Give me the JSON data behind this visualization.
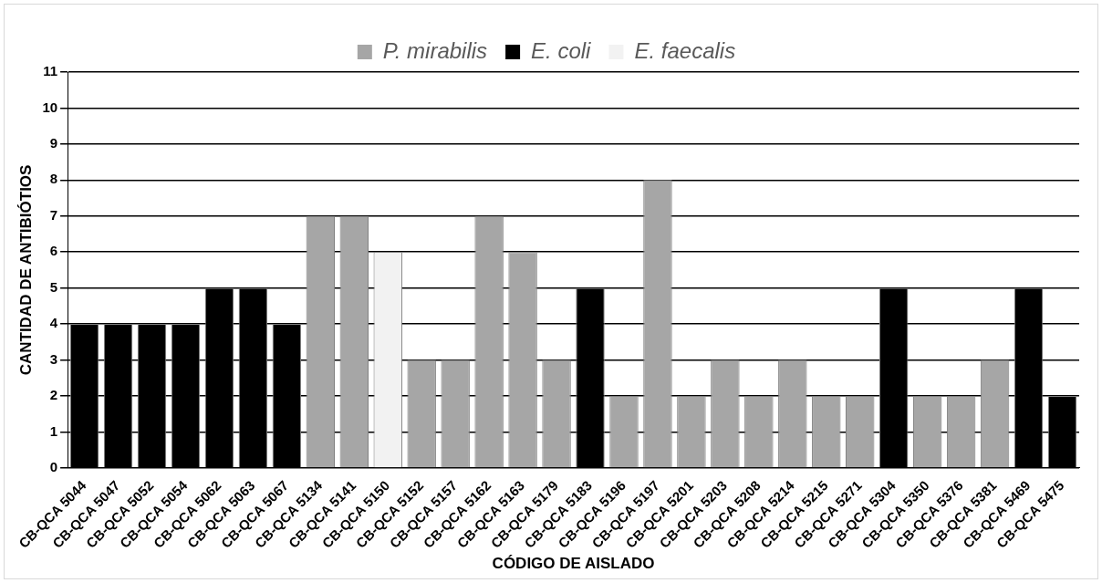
{
  "chart_data": {
    "type": "bar",
    "xlabel": "CÓDIGO DE AISLADO",
    "ylabel": "CANTIDAD DE ANTIBIÓTIOS",
    "categories": [
      "CB-QCA 5044",
      "CB-QCA 5047",
      "CB-QCA 5052",
      "CB-QCA 5054",
      "CB-QCA 5062",
      "CB-QCA 5063",
      "CB-QCA 5067",
      "CB-QCA 5134",
      "CB-QCA 5141",
      "CB-QCA 5150",
      "CB-QCA 5152",
      "CB-QCA 5157",
      "CB-QCA 5162",
      "CB-QCA 5163",
      "CB-QCA 5179",
      "CB-QCA 5183",
      "CB-QCA 5196",
      "CB-QCA 5197",
      "CB-QCA 5201",
      "CB-QCA 5203",
      "CB-QCA 5208",
      "CB-QCA 5214",
      "CB-QCA 5215",
      "CB-QCA 5271",
      "CB-QCA 5304",
      "CB-QCA 5350",
      "CB-QCA 5376",
      "CB-QCA 5381",
      "CB-QCA 5469",
      "CB-QCA 5475"
    ],
    "series": [
      {
        "name": "P. mirabilis",
        "color": "#a6a6a6",
        "values": [
          null,
          null,
          null,
          null,
          null,
          null,
          null,
          7,
          7,
          null,
          3,
          3,
          7,
          6,
          3,
          null,
          2,
          8,
          2,
          3,
          2,
          3,
          2,
          2,
          null,
          2,
          2,
          3,
          null,
          null
        ]
      },
      {
        "name": "E. coli",
        "color": "#000000",
        "values": [
          4,
          4,
          4,
          4,
          5,
          5,
          4,
          null,
          null,
          null,
          null,
          null,
          null,
          null,
          null,
          5,
          null,
          null,
          null,
          null,
          null,
          null,
          null,
          null,
          5,
          null,
          null,
          null,
          5,
          2
        ]
      },
      {
        "name": "E. faecalis",
        "color": "#f2f2f2",
        "values": [
          null,
          null,
          null,
          null,
          null,
          null,
          null,
          null,
          null,
          6,
          null,
          null,
          null,
          null,
          null,
          null,
          null,
          null,
          null,
          null,
          null,
          null,
          null,
          null,
          null,
          null,
          null,
          null,
          null,
          null
        ]
      }
    ],
    "ylim": [
      0,
      11
    ],
    "yticks": [
      0,
      1,
      2,
      3,
      4,
      5,
      6,
      7,
      8,
      9,
      10,
      11
    ],
    "grid": "y",
    "legend": "top"
  }
}
